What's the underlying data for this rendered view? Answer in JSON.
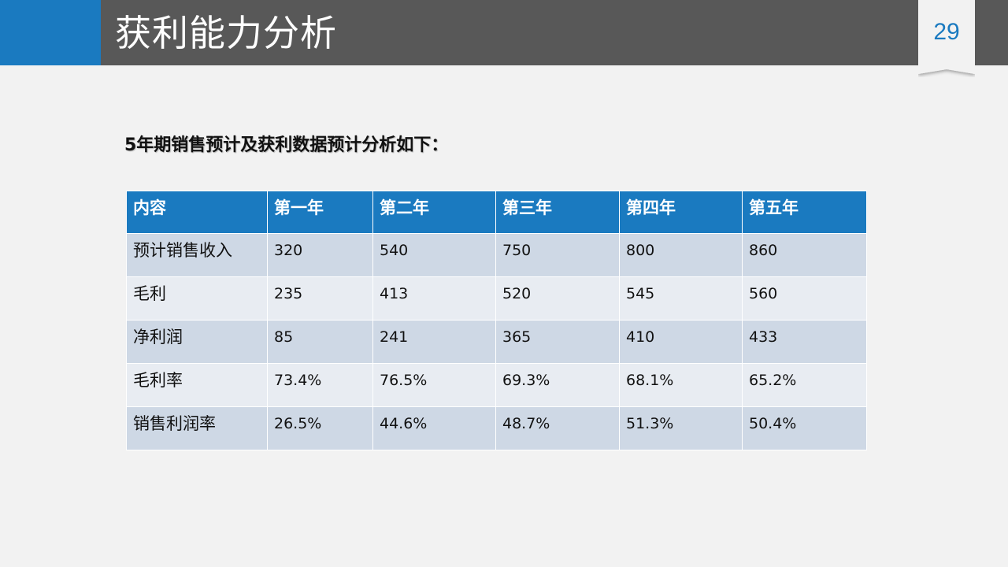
{
  "header": {
    "title": "获利能力分析",
    "page_number": "29",
    "bar_color": "#585858",
    "accent_color": "#1a7ac0"
  },
  "subtitle": "5年期销售预计及获利数据预计分析如下：",
  "table": {
    "header_color": "#1a7ac0",
    "row_colors": [
      "#ced8e5",
      "#e8ecf2"
    ],
    "columns": [
      "内容",
      "第一年",
      "第二年",
      "第三年",
      "第四年",
      "第五年"
    ],
    "rows": [
      {
        "label": "预计销售收入",
        "values": [
          "320",
          "540",
          "750",
          "800",
          "860"
        ]
      },
      {
        "label": "毛利",
        "values": [
          "235",
          "413",
          "520",
          "545",
          "560"
        ]
      },
      {
        "label": "净利润",
        "values": [
          "85",
          "241",
          "365",
          "410",
          "433"
        ]
      },
      {
        "label": "毛利率",
        "values": [
          "73.4%",
          "76.5%",
          "69.3%",
          "68.1%",
          "65.2%"
        ]
      },
      {
        "label": "销售利润率",
        "values": [
          "26.5%",
          "44.6%",
          "48.7%",
          "51.3%",
          "50.4%"
        ]
      }
    ]
  }
}
